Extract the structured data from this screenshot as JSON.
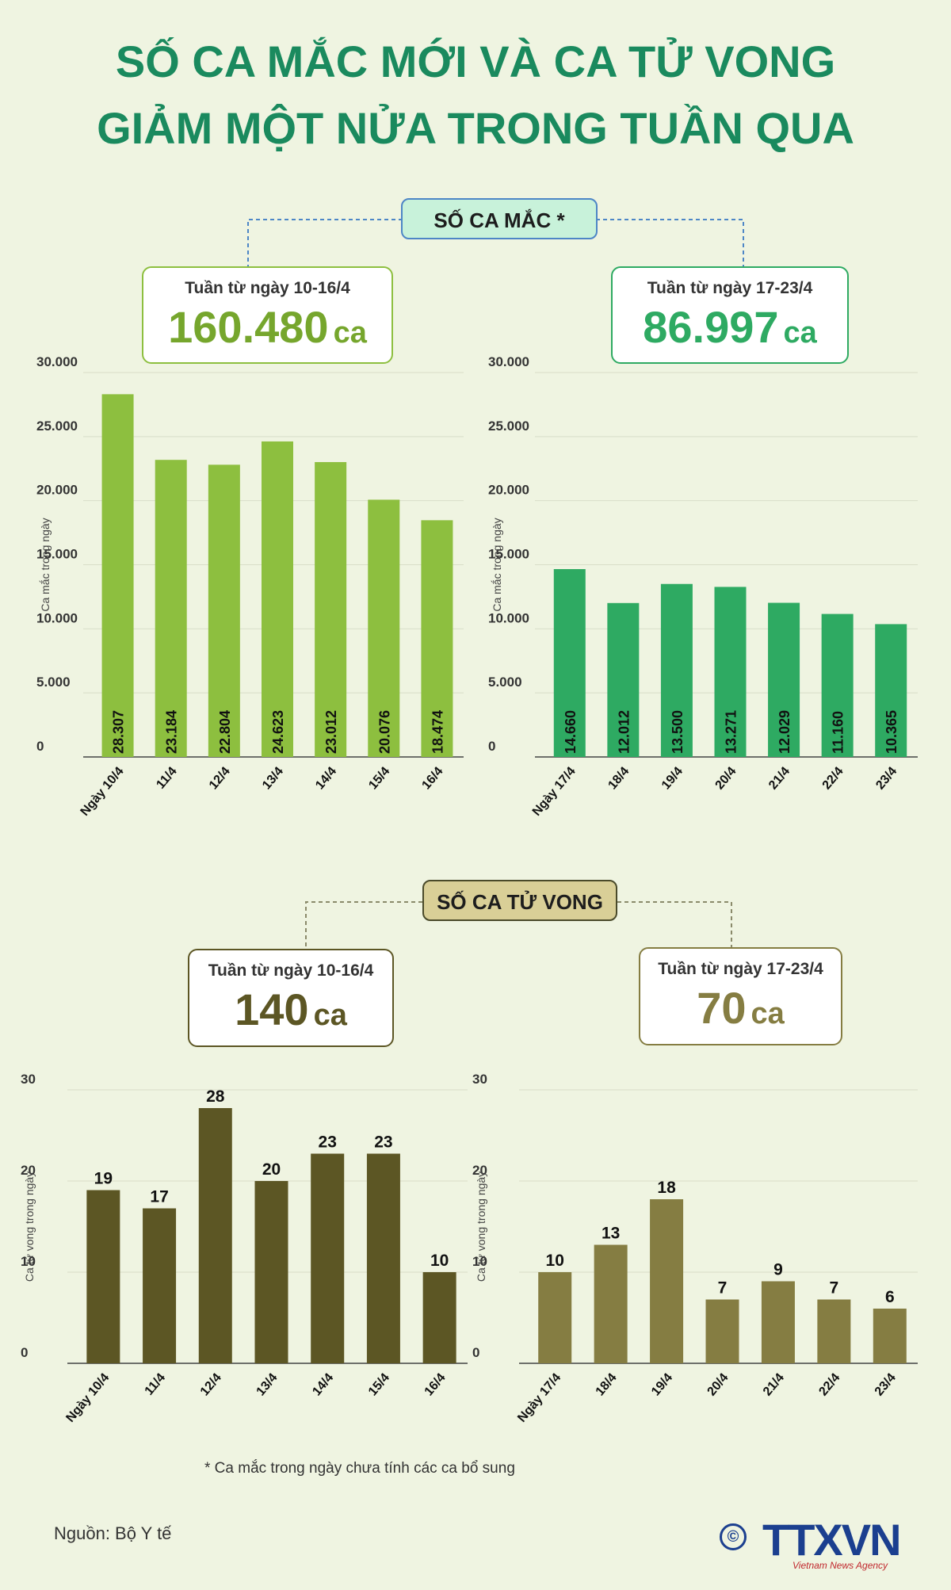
{
  "title": {
    "line1": "SỐ CA MẮC MỚI VÀ CA TỬ VONG",
    "line2": "GIẢM MỘT NỬA TRONG TUẦN QUA"
  },
  "cases_section": {
    "label": "SỐ CA MẮC *",
    "week1": {
      "label": "Tuần từ ngày 10-16/4",
      "total": "160.480",
      "unit": "ca"
    },
    "week2": {
      "label": "Tuần từ ngày 17-23/4",
      "total": "86.997",
      "unit": "ca"
    }
  },
  "deaths_section": {
    "label": "SỐ CA TỬ VONG",
    "week1": {
      "label": "Tuần từ ngày 10-16/4",
      "total": "140",
      "unit": "ca"
    },
    "week2": {
      "label": "Tuần từ ngày 17-23/4",
      "total": "70",
      "unit": "ca"
    }
  },
  "colors": {
    "cases_week1": "#8dbf3f",
    "cases_week2": "#2eaa62",
    "deaths_week1": "#5c5624",
    "deaths_week2": "#857d42",
    "title": "#1a8a5e",
    "cases_pill": "#c8f2da",
    "cases_pill_border": "#4d86c6",
    "deaths_pill": "#d9cf97"
  },
  "chart_data": [
    {
      "type": "bar",
      "ylabel": "Ca mắc trong ngày",
      "ylim": [
        0,
        30000
      ],
      "yticks": [
        "0",
        "5.000",
        "10.000",
        "15.000",
        "20.000",
        "25.000",
        "30.000"
      ],
      "categories": [
        "Ngày 10/4",
        "11/4",
        "12/4",
        "13/4",
        "14/4",
        "15/4",
        "16/4"
      ],
      "values": [
        28307,
        23184,
        22804,
        24623,
        23012,
        20076,
        18474
      ],
      "value_labels": [
        "28.307",
        "23.184",
        "22.804",
        "24.623",
        "23.012",
        "20.076",
        "18.474"
      ]
    },
    {
      "type": "bar",
      "ylabel": "Ca mắc trong ngày",
      "ylim": [
        0,
        30000
      ],
      "yticks": [
        "0",
        "5.000",
        "10.000",
        "15.000",
        "20.000",
        "25.000",
        "30.000"
      ],
      "categories": [
        "Ngày 17/4",
        "18/4",
        "19/4",
        "20/4",
        "21/4",
        "22/4",
        "23/4"
      ],
      "values": [
        14660,
        12012,
        13500,
        13271,
        12029,
        11160,
        10365
      ],
      "value_labels": [
        "14.660",
        "12.012",
        "13.500",
        "13.271",
        "12.029",
        "11.160",
        "10.365"
      ]
    },
    {
      "type": "bar",
      "ylabel": "Ca tử vong trong ngày",
      "ylim": [
        0,
        30
      ],
      "yticks": [
        "0",
        "10",
        "20",
        "30"
      ],
      "categories": [
        "Ngày 10/4",
        "11/4",
        "12/4",
        "13/4",
        "14/4",
        "15/4",
        "16/4"
      ],
      "values": [
        19,
        17,
        28,
        20,
        23,
        23,
        10
      ],
      "value_labels": [
        "19",
        "17",
        "28",
        "20",
        "23",
        "23",
        "10"
      ]
    },
    {
      "type": "bar",
      "ylabel": "Ca tử vong trong ngày",
      "ylim": [
        0,
        30
      ],
      "yticks": [
        "0",
        "10",
        "20",
        "30"
      ],
      "categories": [
        "Ngày 17/4",
        "18/4",
        "19/4",
        "20/4",
        "21/4",
        "22/4",
        "23/4"
      ],
      "values": [
        10,
        13,
        18,
        7,
        9,
        7,
        6
      ],
      "value_labels": [
        "10",
        "13",
        "18",
        "7",
        "9",
        "7",
        "6"
      ]
    }
  ],
  "footnote": "* Ca mắc trong ngày chưa tính các ca bổ sung",
  "source": "Nguồn: Bộ Y tế",
  "logo": {
    "copyright": "©",
    "name": "TTXVN",
    "subtitle": "Vietnam News Agency"
  }
}
